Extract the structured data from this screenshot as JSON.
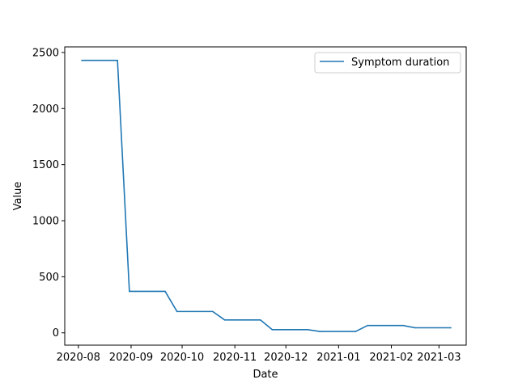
{
  "chart_data": {
    "type": "line",
    "title": "",
    "xlabel": "Date",
    "ylabel": "Value",
    "x_tick_labels": [
      "2020-08",
      "2020-09",
      "2020-10",
      "2020-11",
      "2020-12",
      "2021-01",
      "2021-02",
      "2021-03"
    ],
    "x_tick_dates": [
      "2020-08-01",
      "2020-09-01",
      "2020-10-01",
      "2020-11-01",
      "2020-12-01",
      "2021-01-01",
      "2021-02-01",
      "2021-03-01"
    ],
    "y_ticks": [
      0,
      500,
      1000,
      1500,
      2000,
      2500
    ],
    "xlim": [
      "2020-07-24",
      "2021-03-17"
    ],
    "ylim": [
      -110,
      2550
    ],
    "grid": false,
    "legend_position": "top-right",
    "series": [
      {
        "name": "Symptom duration",
        "color": "#1f77b4",
        "points": [
          {
            "x": "2020-08-03",
            "y": 2430
          },
          {
            "x": "2020-08-24",
            "y": 2430
          },
          {
            "x": "2020-08-31",
            "y": 370
          },
          {
            "x": "2020-09-21",
            "y": 370
          },
          {
            "x": "2020-09-28",
            "y": 190
          },
          {
            "x": "2020-10-19",
            "y": 190
          },
          {
            "x": "2020-10-26",
            "y": 115
          },
          {
            "x": "2020-11-16",
            "y": 115
          },
          {
            "x": "2020-11-23",
            "y": 28
          },
          {
            "x": "2020-12-14",
            "y": 28
          },
          {
            "x": "2020-12-21",
            "y": 12
          },
          {
            "x": "2021-01-11",
            "y": 12
          },
          {
            "x": "2021-01-18",
            "y": 65
          },
          {
            "x": "2021-02-08",
            "y": 65
          },
          {
            "x": "2021-02-15",
            "y": 45
          },
          {
            "x": "2021-03-08",
            "y": 45
          }
        ]
      }
    ]
  }
}
